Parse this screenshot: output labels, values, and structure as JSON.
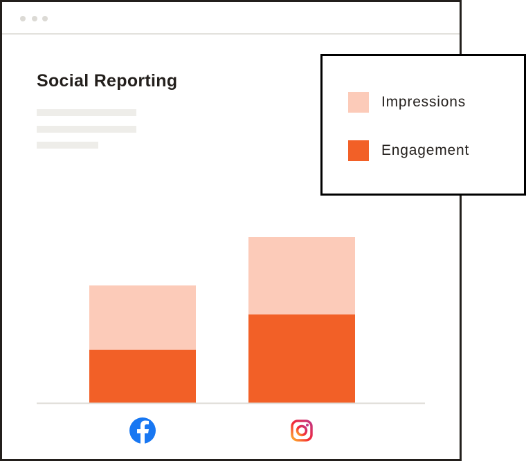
{
  "window": {
    "title": "Social Reporting"
  },
  "chart_data": {
    "type": "bar",
    "stacked": true,
    "title": "Social Reporting",
    "categories": [
      "Facebook",
      "Instagram"
    ],
    "category_icons": [
      "facebook-icon",
      "instagram-icon"
    ],
    "series": [
      {
        "name": "Engagement",
        "values": [
          77,
          128
        ],
        "color": "#f26027"
      },
      {
        "name": "Impressions",
        "values": [
          93,
          112
        ],
        "color": "#fccbb9"
      }
    ],
    "ylim": [
      0,
      240
    ],
    "grid": false,
    "legend_placement": "top-right",
    "legend": [
      {
        "label": "Impressions",
        "color": "#fccbb9"
      },
      {
        "label": "Engagement",
        "color": "#f26027"
      }
    ]
  }
}
